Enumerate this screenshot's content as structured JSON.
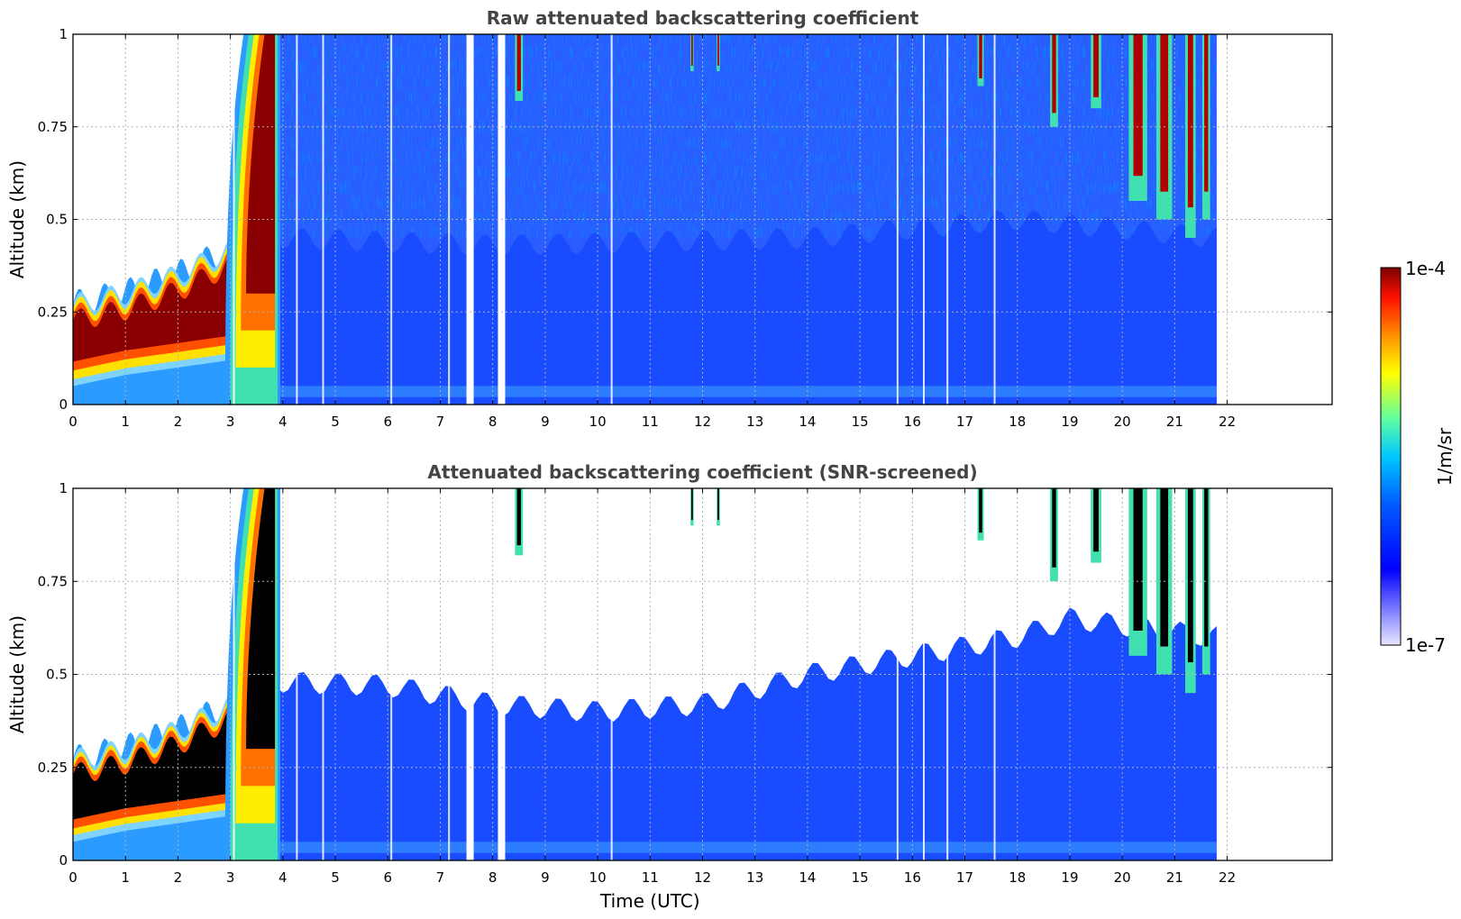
{
  "chart_data": [
    {
      "type": "heatmap",
      "title": "Raw attenuated backscattering coefficient",
      "xlabel": "",
      "ylabel": "Altitude (km)",
      "xlim": [
        0,
        24
      ],
      "ylim": [
        0,
        1
      ],
      "x_ticks": [
        "0",
        "1",
        "2",
        "3",
        "4",
        "5",
        "6",
        "7",
        "8",
        "9",
        "10",
        "11",
        "12",
        "13",
        "14",
        "15",
        "16",
        "17",
        "18",
        "19",
        "20",
        "21",
        "22"
      ],
      "y_ticks": [
        "0",
        "0.25",
        "0.5",
        "0.75",
        "1"
      ],
      "grid": true,
      "data_end_time": 21.8,
      "features": {
        "boundary_layer_top_km": [
          [
            0,
            0.28
          ],
          [
            1,
            0.33
          ],
          [
            2,
            0.4
          ],
          [
            3,
            0.45
          ],
          [
            4,
            0.45
          ],
          [
            8,
            0.43
          ],
          [
            14,
            0.45
          ],
          [
            18,
            0.5
          ],
          [
            21.8,
            0.45
          ]
        ],
        "aerosol_layer": [
          {
            "start": 0,
            "end": 3,
            "bottom_km": 0.05,
            "top_km": [
              0.3,
              0.38,
              0.42
            ]
          }
        ],
        "rising_plume": {
          "start": 2.9,
          "end": 3.9,
          "bottom_km": 0,
          "top_km": 1.0
        },
        "clouds_above_km": [
          8.5,
          11.8,
          12.3,
          17.3,
          18.7,
          19.5,
          20.5,
          21.3
        ],
        "missing_data_hours": [
          7.5,
          8.1
        ]
      }
    },
    {
      "type": "heatmap",
      "title": "Attenuated backscattering coefficient (SNR-screened)",
      "xlabel": "Time (UTC)",
      "ylabel": "Altitude (km)",
      "xlim": [
        0,
        24
      ],
      "ylim": [
        0,
        1
      ],
      "x_ticks": [
        "0",
        "1",
        "2",
        "3",
        "4",
        "5",
        "6",
        "7",
        "8",
        "9",
        "10",
        "11",
        "12",
        "13",
        "14",
        "15",
        "16",
        "17",
        "18",
        "19",
        "20",
        "21",
        "22"
      ],
      "y_ticks": [
        "0",
        "0.25",
        "0.5",
        "0.75",
        "1"
      ],
      "grid": true,
      "data_end_time": 21.8,
      "snr_screened_top_km": [
        [
          4,
          0.48
        ],
        [
          6,
          0.47
        ],
        [
          8,
          0.42
        ],
        [
          10,
          0.4
        ],
        [
          12,
          0.42
        ],
        [
          14,
          0.5
        ],
        [
          16,
          0.55
        ],
        [
          18,
          0.6
        ],
        [
          19,
          0.65
        ],
        [
          21.8,
          0.6
        ]
      ]
    }
  ],
  "colorbar": {
    "label": "1/m/sr",
    "max_label": "1e-4",
    "min_label": "1e-7",
    "scale": "log",
    "range": [
      1e-07,
      0.0001
    ],
    "colors": [
      "#e8e8ff",
      "#8c8cff",
      "#0000ff",
      "#0060ff",
      "#00c8ff",
      "#60ffa0",
      "#ffff00",
      "#ff9000",
      "#ff1000",
      "#7a0000"
    ]
  }
}
